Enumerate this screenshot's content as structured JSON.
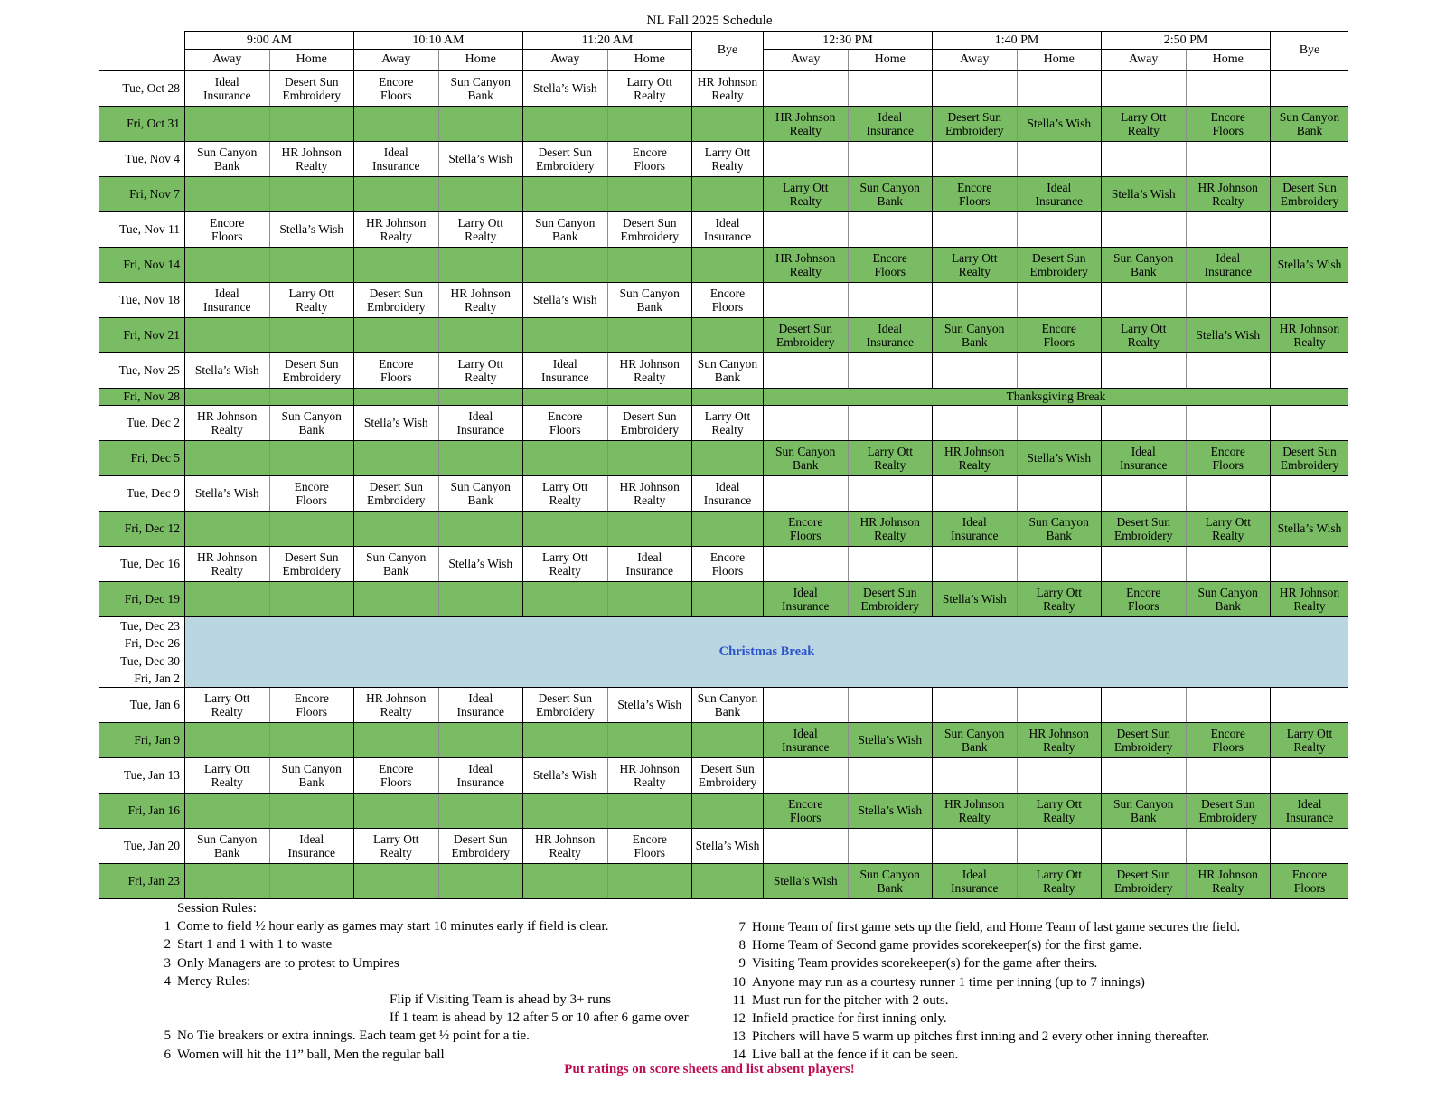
{
  "title": "NL Fall 2025 Schedule",
  "colors": {
    "friday_row_green": "#7ABC63",
    "christmas_bg_blue": "#BBD6E3",
    "christmas_text_blue": "#2B54C8",
    "footer_text_magenta": "#BE0E51",
    "grid_line": "#000000",
    "sub_divider_gray": "#8c8c8c"
  },
  "table": {
    "time_slots": [
      "9:00 AM",
      "10:10 AM",
      "11:20 AM",
      "Bye",
      "12:30 PM",
      "1:40 PM",
      "2:50 PM",
      "Bye"
    ],
    "away_label": "Away",
    "home_label": "Home",
    "teams": [
      "Ideal Insurance",
      "Desert Sun Embroidery",
      "Encore Floors",
      "Sun Canyon Bank",
      "Stella’s Wish",
      "Larry Ott Realty",
      "HR Johnson Realty"
    ],
    "rows": [
      {
        "date": "Tue, Oct 28",
        "session": "AM",
        "games": [
          [
            "Ideal Insurance",
            "Desert Sun Embroidery"
          ],
          [
            "Encore Floors",
            "Sun Canyon Bank"
          ],
          [
            "Stella’s Wish",
            "Larry Ott Realty"
          ]
        ],
        "bye": "HR Johnson Realty"
      },
      {
        "date": "Fri, Oct 31",
        "session": "PM",
        "games": [
          [
            "HR Johnson Realty",
            "Ideal Insurance"
          ],
          [
            "Desert Sun Embroidery",
            "Stella’s Wish"
          ],
          [
            "Larry Ott Realty",
            "Encore Floors"
          ]
        ],
        "bye": "Sun Canyon Bank"
      },
      {
        "date": "Tue, Nov 4",
        "session": "AM",
        "games": [
          [
            "Sun Canyon Bank",
            "HR Johnson Realty"
          ],
          [
            "Ideal Insurance",
            "Stella’s Wish"
          ],
          [
            "Desert Sun Embroidery",
            "Encore Floors"
          ]
        ],
        "bye": "Larry Ott Realty"
      },
      {
        "date": "Fri, Nov 7",
        "session": "PM",
        "games": [
          [
            "Larry Ott Realty",
            "Sun Canyon Bank"
          ],
          [
            "Encore Floors",
            "Ideal Insurance"
          ],
          [
            "Stella’s Wish",
            "HR Johnson Realty"
          ]
        ],
        "bye": "Desert Sun Embroidery"
      },
      {
        "date": "Tue, Nov 11",
        "session": "AM",
        "games": [
          [
            "Encore Floors",
            "Stella’s Wish"
          ],
          [
            "HR Johnson Realty",
            "Larry Ott Realty"
          ],
          [
            "Sun Canyon Bank",
            "Desert Sun Embroidery"
          ]
        ],
        "bye": "Ideal Insurance"
      },
      {
        "date": "Fri, Nov 14",
        "session": "PM",
        "games": [
          [
            "HR Johnson Realty",
            "Encore Floors"
          ],
          [
            "Larry Ott Realty",
            "Desert Sun Embroidery"
          ],
          [
            "Sun Canyon Bank",
            "Ideal Insurance"
          ]
        ],
        "bye": "Stella’s Wish"
      },
      {
        "date": "Tue, Nov 18",
        "session": "AM",
        "games": [
          [
            "Ideal Insurance",
            "Larry Ott Realty"
          ],
          [
            "Desert Sun Embroidery",
            "HR Johnson Realty"
          ],
          [
            "Stella’s Wish",
            "Sun Canyon Bank"
          ]
        ],
        "bye": "Encore Floors"
      },
      {
        "date": "Fri, Nov 21",
        "session": "PM",
        "games": [
          [
            "Desert Sun Embroidery",
            "Ideal Insurance"
          ],
          [
            "Sun Canyon Bank",
            "Encore Floors"
          ],
          [
            "Larry Ott Realty",
            "Stella’s Wish"
          ]
        ],
        "bye": "HR Johnson Realty"
      },
      {
        "date": "Tue, Nov 25",
        "session": "AM",
        "games": [
          [
            "Stella’s Wish",
            "Desert Sun Embroidery"
          ],
          [
            "Encore Floors",
            "Larry Ott Realty"
          ],
          [
            "Ideal Insurance",
            "HR Johnson Realty"
          ]
        ],
        "bye": "Sun Canyon Bank"
      },
      {
        "type": "break",
        "style": "green",
        "dates": [
          "Fri, Nov 28"
        ],
        "label": "Thanksgiving Break"
      },
      {
        "date": "Tue, Dec 2",
        "session": "AM",
        "games": [
          [
            "HR Johnson Realty",
            "Sun Canyon Bank"
          ],
          [
            "Stella’s Wish",
            "Ideal Insurance"
          ],
          [
            "Encore Floors",
            "Desert Sun Embroidery"
          ]
        ],
        "bye": "Larry Ott Realty"
      },
      {
        "date": "Fri, Dec 5",
        "session": "PM",
        "games": [
          [
            "Sun Canyon Bank",
            "Larry Ott Realty"
          ],
          [
            "HR Johnson Realty",
            "Stella’s Wish"
          ],
          [
            "Ideal Insurance",
            "Encore Floors"
          ]
        ],
        "bye": "Desert Sun Embroidery"
      },
      {
        "date": "Tue, Dec 9",
        "session": "AM",
        "games": [
          [
            "Stella’s Wish",
            "Encore Floors"
          ],
          [
            "Desert Sun Embroidery",
            "Sun Canyon Bank"
          ],
          [
            "Larry Ott Realty",
            "HR Johnson Realty"
          ]
        ],
        "bye": "Ideal Insurance"
      },
      {
        "date": "Fri, Dec 12",
        "session": "PM",
        "games": [
          [
            "Encore Floors",
            "HR Johnson Realty"
          ],
          [
            "Ideal Insurance",
            "Sun Canyon Bank"
          ],
          [
            "Desert Sun Embroidery",
            "Larry Ott Realty"
          ]
        ],
        "bye": "Stella’s Wish"
      },
      {
        "date": "Tue, Dec 16",
        "session": "AM",
        "games": [
          [
            "HR Johnson Realty",
            "Desert Sun Embroidery"
          ],
          [
            "Sun Canyon Bank",
            "Stella’s Wish"
          ],
          [
            "Larry Ott Realty",
            "Ideal Insurance"
          ]
        ],
        "bye": "Encore Floors"
      },
      {
        "date": "Fri, Dec 19",
        "session": "PM",
        "games": [
          [
            "Ideal Insurance",
            "Desert Sun Embroidery"
          ],
          [
            "Stella’s Wish",
            "Larry Ott Realty"
          ],
          [
            "Encore Floors",
            "Sun Canyon Bank"
          ]
        ],
        "bye": "HR Johnson Realty"
      },
      {
        "type": "break",
        "style": "blue",
        "dates": [
          "Tue, Dec 23",
          "Fri, Dec 26",
          "Tue, Dec 30",
          "Fri, Jan 2"
        ],
        "label": "Christmas Break"
      },
      {
        "date": "Tue, Jan 6",
        "session": "AM",
        "games": [
          [
            "Larry Ott Realty",
            "Encore Floors"
          ],
          [
            "HR Johnson Realty",
            "Ideal Insurance"
          ],
          [
            "Desert Sun Embroidery",
            "Stella’s Wish"
          ]
        ],
        "bye": "Sun Canyon Bank"
      },
      {
        "date": "Fri, Jan 9",
        "session": "PM",
        "games": [
          [
            "Ideal Insurance",
            "Stella’s Wish"
          ],
          [
            "Sun Canyon Bank",
            "HR Johnson Realty"
          ],
          [
            "Desert Sun Embroidery",
            "Encore Floors"
          ]
        ],
        "bye": "Larry Ott Realty"
      },
      {
        "date": "Tue, Jan 13",
        "session": "AM",
        "games": [
          [
            "Larry Ott Realty",
            "Sun Canyon Bank"
          ],
          [
            "Encore Floors",
            "Ideal Insurance"
          ],
          [
            "Stella’s Wish",
            "HR Johnson Realty"
          ]
        ],
        "bye": "Desert Sun Embroidery"
      },
      {
        "date": "Fri, Jan 16",
        "session": "PM",
        "games": [
          [
            "Encore Floors",
            "Stella’s Wish"
          ],
          [
            "HR Johnson Realty",
            "Larry Ott Realty"
          ],
          [
            "Sun Canyon Bank",
            "Desert Sun Embroidery"
          ]
        ],
        "bye": "Ideal Insurance"
      },
      {
        "date": "Tue, Jan 20",
        "session": "AM",
        "games": [
          [
            "Sun Canyon Bank",
            "Ideal Insurance"
          ],
          [
            "Larry Ott Realty",
            "Desert Sun Embroidery"
          ],
          [
            "HR Johnson Realty",
            "Encore Floors"
          ]
        ],
        "bye": "Stella’s Wish"
      },
      {
        "date": "Fri, Jan 23",
        "session": "PM",
        "games": [
          [
            "Stella’s Wish",
            "Sun Canyon Bank"
          ],
          [
            "Ideal Insurance",
            "Larry Ott Realty"
          ],
          [
            "Desert Sun Embroidery",
            "HR Johnson Realty"
          ]
        ],
        "bye": "Encore Floors"
      }
    ]
  },
  "rules": {
    "heading": "Session Rules:",
    "left": [
      {
        "num": "1",
        "text": "Come to field ½ hour early as games may start 10 minutes early if field is clear."
      },
      {
        "num": "2",
        "text": "Start 1 and 1 with 1 to waste"
      },
      {
        "num": "3",
        "text": "Only Managers are to protest to Umpires"
      },
      {
        "num": "4",
        "text": "Mercy Rules:"
      },
      {
        "num": "",
        "text": "Flip if Visiting Team is ahead by 3+ runs",
        "indent": true
      },
      {
        "num": "",
        "text": "If 1 team is ahead by 12 after 5 or 10 after 6 game over",
        "indent": true
      },
      {
        "num": "5",
        "text": "No Tie breakers or extra innings. Each team get ½ point for a tie."
      },
      {
        "num": "6",
        "text": "Women will hit the 11” ball, Men the regular ball"
      }
    ],
    "right": [
      {
        "num": "7",
        "text": "Home Team of first game sets up the field, and Home Team of last game secures the field."
      },
      {
        "num": "8",
        "text": "Home Team of Second game provides scorekeeper(s) for the first game."
      },
      {
        "num": "9",
        "text": "Visiting Team provides scorekeeper(s) for the game after theirs."
      },
      {
        "num": "10",
        "text": "Anyone may run as a courtesy runner 1 time per inning (up to 7 innings)"
      },
      {
        "num": "11",
        "text": "Must run for the pitcher with 2 outs."
      },
      {
        "num": "12",
        "text": "Infield practice for first inning only."
      },
      {
        "num": "13",
        "text": "Pitchers will have 5 warm up pitches first inning and 2 every other inning thereafter."
      },
      {
        "num": "14",
        "text": "Live ball at the fence if it can be seen."
      }
    ],
    "footer": "Put ratings on score sheets and list absent players!"
  }
}
